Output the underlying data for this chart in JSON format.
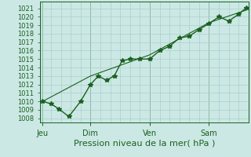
{
  "xlabel": "Pression niveau de la mer( hPa )",
  "bg_color": "#cce8e4",
  "grid_color": "#aacfcc",
  "line_color": "#1a6020",
  "ylim": [
    1007.5,
    1021.8
  ],
  "yticks": [
    1008,
    1009,
    1010,
    1011,
    1012,
    1013,
    1014,
    1015,
    1016,
    1017,
    1018,
    1019,
    1020,
    1021
  ],
  "day_labels": [
    "Jeu",
    "Dim",
    "Ven",
    "Sam"
  ],
  "day_positions": [
    0.08,
    2.5,
    5.5,
    8.5
  ],
  "vline_positions": [
    0.08,
    2.5,
    5.5,
    8.5
  ],
  "xlim": [
    -0.05,
    10.5
  ],
  "series1_x": [
    0.08,
    0.5,
    0.9,
    1.4,
    2.0,
    2.5,
    2.9,
    3.3,
    3.7,
    4.1,
    4.5,
    5.0,
    5.5,
    6.0,
    6.5,
    7.0,
    7.5,
    8.0,
    8.5,
    9.0,
    9.5,
    10.0,
    10.4
  ],
  "series1_y": [
    1010.0,
    1009.7,
    1009.1,
    1008.2,
    1010.0,
    1012.0,
    1013.0,
    1012.5,
    1013.0,
    1014.8,
    1015.0,
    1015.0,
    1015.0,
    1016.0,
    1016.5,
    1017.5,
    1017.7,
    1018.5,
    1019.2,
    1020.0,
    1019.5,
    1020.3,
    1021.1
  ],
  "series2_x": [
    0.08,
    2.5,
    5.5,
    8.5,
    10.4
  ],
  "series2_y": [
    1010.0,
    1013.0,
    1015.5,
    1019.3,
    1020.8
  ],
  "marker_size": 4,
  "linewidth1": 1.0,
  "linewidth2": 0.8,
  "xlabel_fontsize": 8,
  "ylabel_fontsize": 6,
  "xlabel_tick_fontsize": 7
}
